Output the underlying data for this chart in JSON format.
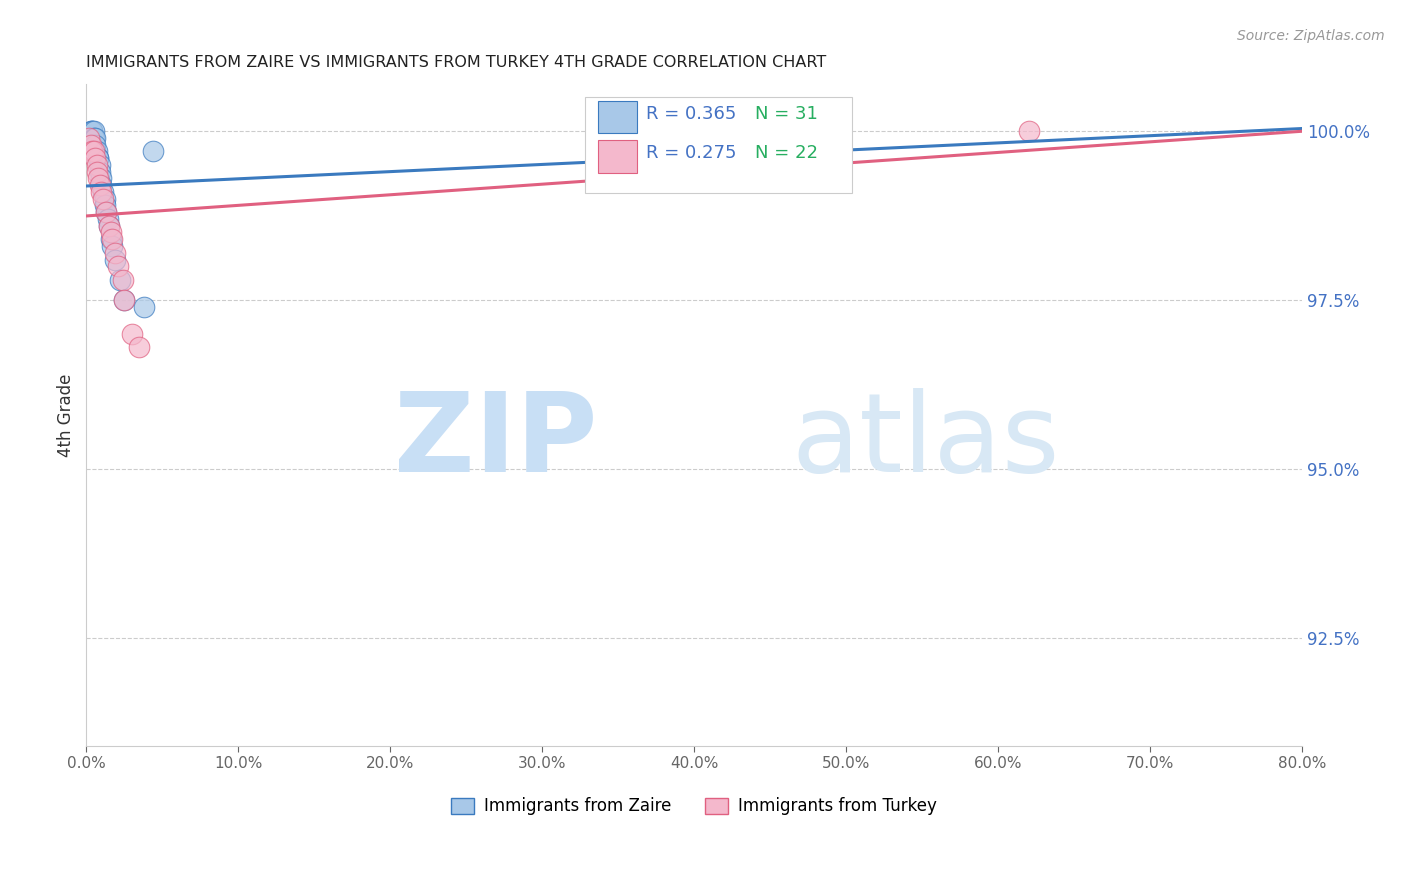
{
  "title": "IMMIGRANTS FROM ZAIRE VS IMMIGRANTS FROM TURKEY 4TH GRADE CORRELATION CHART",
  "source": "Source: ZipAtlas.com",
  "ylabel_label": "4th Grade",
  "legend_zaire": "Immigrants from Zaire",
  "legend_turkey": "Immigrants from Turkey",
  "R_zaire": "R = 0.365",
  "N_zaire": "N = 31",
  "R_turkey": "R = 0.275",
  "N_turkey": "N = 22",
  "color_zaire": "#a8c8e8",
  "color_turkey": "#f4b8cc",
  "line_color_zaire": "#3a7abf",
  "line_color_turkey": "#e06080",
  "text_color_zaire": "#4472c4",
  "text_color_turkey": "#e05878",
  "text_color_N": "#27ae60",
  "watermark_zip": "ZIP",
  "watermark_atlas": "atlas",
  "watermark_color": "#ddeeff",
  "background_color": "#ffffff",
  "grid_color": "#cccccc",
  "xmin": 0.0,
  "xmax": 0.8,
  "ymin": 0.909,
  "ymax": 1.007,
  "yticks": [
    0.925,
    0.95,
    0.975,
    1.0
  ],
  "xticks": [
    0.0,
    0.1,
    0.2,
    0.3,
    0.4,
    0.5,
    0.6,
    0.7,
    0.8
  ],
  "zaire_x": [
    0.001,
    0.003,
    0.003,
    0.004,
    0.004,
    0.005,
    0.005,
    0.006,
    0.006,
    0.006,
    0.007,
    0.008,
    0.008,
    0.009,
    0.009,
    0.01,
    0.01,
    0.011,
    0.012,
    0.012,
    0.013,
    0.014,
    0.015,
    0.016,
    0.017,
    0.019,
    0.022,
    0.025,
    0.038,
    0.044,
    0.37
  ],
  "zaire_y": [
    0.998,
    0.999,
    1.0,
    1.0,
    1.0,
    1.0,
    0.999,
    0.999,
    0.998,
    0.997,
    0.997,
    0.996,
    0.996,
    0.995,
    0.994,
    0.993,
    0.992,
    0.991,
    0.99,
    0.989,
    0.988,
    0.987,
    0.986,
    0.984,
    0.983,
    0.981,
    0.978,
    0.975,
    0.974,
    0.997,
    1.0
  ],
  "turkey_x": [
    0.002,
    0.003,
    0.004,
    0.005,
    0.006,
    0.007,
    0.007,
    0.008,
    0.009,
    0.01,
    0.011,
    0.013,
    0.015,
    0.016,
    0.017,
    0.019,
    0.021,
    0.024,
    0.025,
    0.03,
    0.035,
    0.62
  ],
  "turkey_y": [
    0.999,
    0.998,
    0.997,
    0.997,
    0.996,
    0.995,
    0.994,
    0.993,
    0.992,
    0.991,
    0.99,
    0.988,
    0.986,
    0.985,
    0.984,
    0.982,
    0.98,
    0.978,
    0.975,
    0.97,
    0.968,
    1.0
  ]
}
